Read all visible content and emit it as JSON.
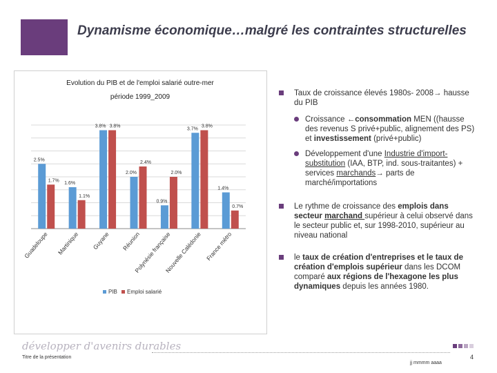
{
  "slide": {
    "title": "Dynamisme économique…malgré les contraintes structurelles",
    "accent_color": "#6a3d7c"
  },
  "chart_data": {
    "type": "bar",
    "title": "Evolution du PIB et de l'emploi salarié outre-mer",
    "subtitle": "période 1999_2009",
    "categories": [
      "Guadeloupe",
      "Martinique",
      "Guyane",
      "Réunion",
      "Polynésie française",
      "Nouvelle Calédonie",
      "France métro"
    ],
    "series": [
      {
        "name": "PIB",
        "color": "#5b9bd5",
        "values": [
          2.5,
          1.6,
          3.8,
          2.0,
          0.9,
          3.7,
          1.4
        ]
      },
      {
        "name": "Emploi salarié",
        "color": "#c0504d",
        "values": [
          1.7,
          1.1,
          3.8,
          2.4,
          2.0,
          3.8,
          0.7
        ]
      }
    ],
    "data_labels": {
      "pib": [
        "2.5%",
        "1.6%",
        "3.8%",
        "2.0%",
        "0.9%",
        "3.7%",
        "1.4%"
      ],
      "emploi": [
        "1.7%",
        "1.1%",
        "3.8%",
        "2.4%",
        "2.0%",
        "3.8%",
        "0.7%"
      ]
    },
    "ylim": [
      0,
      4
    ],
    "legend": [
      "PIB",
      "Emploi salarié"
    ],
    "legend_position": "bottom"
  },
  "bullets": {
    "b1_text_a": "Taux de croissance élevés 1980s- 2008",
    "b1_text_b": " hausse du PIB",
    "b1_sub1_a": "Croissance ",
    "b1_sub1_b": "consommation",
    "b1_sub1_c": " MEN ((hausse des revenus S privé+public, alignement des PS) et ",
    "b1_sub1_d": "investissement",
    "b1_sub1_e": " (privé+public)",
    "b1_sub2_a": "Développement d'une ",
    "b1_sub2_b": "Industrie d'import-substitution",
    "b1_sub2_c": " (IAA, BTP, ind. sous-traitantes) + services ",
    "b1_sub2_d": "marchands",
    "b1_sub2_e": " parts de marché/importations",
    "b2_a": "Le rythme de croissance des ",
    "b2_b": "emplois dans secteur ",
    "b2_c": "marchand ",
    "b2_d": "supérieur à celui observé dans le secteur public et, sur 1998-2010, supérieur au niveau national",
    "b3_a": "le ",
    "b3_b": "taux de création d'entreprises et le taux de création d'emplois supérieur",
    "b3_c": " dans les DCOM comparé ",
    "b3_d": "aux régions de l'hexagone les plus dynamiques",
    "b3_e": " depuis les années 1980."
  },
  "footer": {
    "logo_text": "développer d'avenirs durables",
    "presentation_label": "Titre de la présentation",
    "date_label": "jj mmmm aaaa",
    "page_number": "4"
  }
}
